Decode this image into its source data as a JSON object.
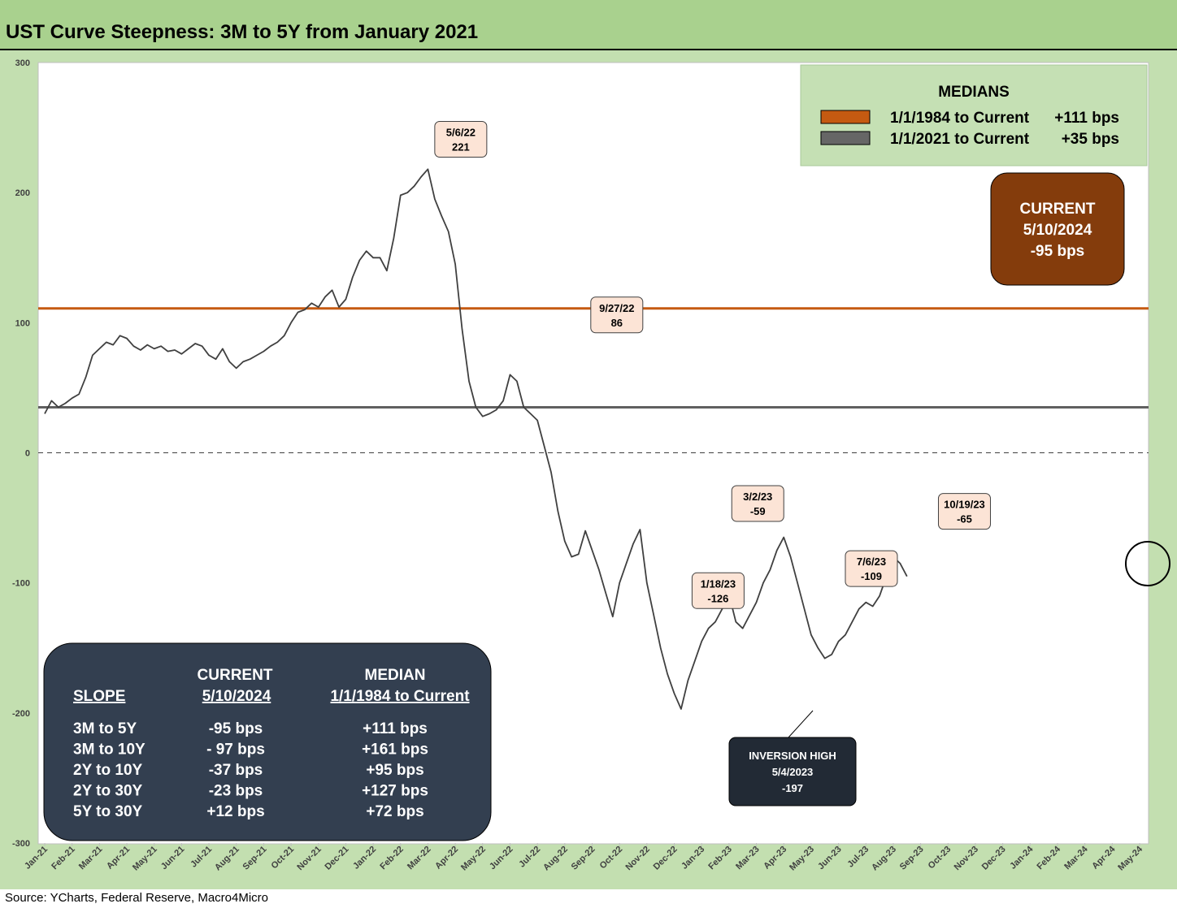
{
  "title": "UST Curve Steepness: 3M to 5Y from January 2021",
  "source": "Source: YCharts, Federal Reserve, Macro4Micro",
  "chart_data": {
    "type": "line",
    "ylim": [
      -300,
      300
    ],
    "yticks": [
      "300",
      "200",
      "100",
      "0",
      "-100",
      "-200",
      "-300"
    ],
    "ytick_values": [
      300,
      200,
      100,
      0,
      -100,
      -200,
      -300
    ],
    "x_categories": [
      "Jan-21",
      "Feb-21",
      "Mar-21",
      "Apr-21",
      "May-21",
      "Jun-21",
      "Jul-21",
      "Aug-21",
      "Sep-21",
      "Oct-21",
      "Nov-21",
      "Dec-21",
      "Jan-22",
      "Feb-22",
      "Mar-22",
      "Apr-22",
      "May-22",
      "Jun-22",
      "Jul-22",
      "Aug-22",
      "Sep-22",
      "Oct-22",
      "Nov-22",
      "Dec-22",
      "Jan-23",
      "Feb-23",
      "Mar-23",
      "Apr-23",
      "May-23",
      "Jun-23",
      "Jul-23",
      "Aug-23",
      "Sep-23",
      "Oct-23",
      "Nov-23",
      "Dec-23",
      "Jan-24",
      "Feb-24",
      "Mar-24",
      "Apr-24",
      "May-24"
    ],
    "series": [
      {
        "color": "#404040",
        "x_start": 0,
        "x_step": 0.25,
        "values": [
          30,
          40,
          35,
          38,
          42,
          45,
          58,
          75,
          80,
          85,
          83,
          90,
          88,
          82,
          79,
          83,
          80,
          82,
          78,
          79,
          76,
          80,
          84,
          82,
          75,
          72,
          80,
          70,
          65,
          70,
          72,
          75,
          78,
          82,
          85,
          90,
          100,
          108,
          110,
          115,
          112,
          120,
          125,
          112,
          118,
          135,
          148,
          155,
          150,
          150,
          140,
          165,
          198,
          200,
          205,
          212,
          218,
          195,
          182,
          170,
          145,
          95,
          55,
          35,
          28,
          30,
          33,
          40,
          60,
          55,
          35,
          30,
          25,
          5,
          -15,
          -45,
          -68,
          -80,
          -78,
          -60,
          -75,
          -90,
          -108,
          -126,
          -100,
          -85,
          -70,
          -59,
          -100,
          -125,
          -150,
          -170,
          -185,
          -197,
          -175,
          -160,
          -145,
          -135,
          -130,
          -120,
          -109,
          -130,
          -135,
          -125,
          -115,
          -100,
          -90,
          -75,
          -65,
          -80,
          -100,
          -120,
          -140,
          -150,
          -158,
          -155,
          -145,
          -140,
          -130,
          -120,
          -115,
          -118,
          -110,
          -95,
          -80,
          -85,
          -95
        ]
      }
    ],
    "reference_lines": [
      {
        "value": 111,
        "color": "#c55a11",
        "label": "1/1/1984 to Current +111 bps"
      },
      {
        "value": 35,
        "color": "#606060",
        "label": "1/1/2021 to Current +35 bps"
      }
    ],
    "zero_line": "dashed",
    "annotations": [
      {
        "x": 15.2,
        "y": 221,
        "lines": [
          "5/6/22",
          "221"
        ]
      },
      {
        "x": 20.9,
        "y": 86,
        "lines": [
          "9/27/22",
          "86"
        ]
      },
      {
        "x": 26.05,
        "y": -59,
        "lines": [
          "3/2/23",
          "-59"
        ]
      },
      {
        "x": 24.6,
        "y": -126,
        "lines": [
          "1/18/23",
          "-126"
        ]
      },
      {
        "x": 30.2,
        "y": -109,
        "lines": [
          "7/6/23",
          "-109"
        ]
      },
      {
        "x": 33.6,
        "y": -65,
        "lines": [
          "10/19/23",
          "-65"
        ]
      }
    ]
  },
  "legend": {
    "title": "MEDIANS",
    "items": [
      {
        "label": "1/1/1984 to Current",
        "value": "+111 bps",
        "color": "#c55a11"
      },
      {
        "label": "1/1/2021 to Current",
        "value": "+35 bps",
        "color": "#666666"
      }
    ]
  },
  "current_box": {
    "line1": "CURRENT",
    "line2": "5/10/2024",
    "line3": "-95 bps",
    "color": "#843c0c"
  },
  "inversion_box": {
    "line1": "INVERSION HIGH",
    "line2": "5/4/2023",
    "line3": "-197"
  },
  "slope_table": {
    "header_current": "CURRENT",
    "header_median": "MEDIAN",
    "col_slope": "SLOPE",
    "col_current_date": "5/10/2024",
    "col_median_range": "1/1/1984 to Current",
    "rows": [
      {
        "slope": "3M to 5Y",
        "current": "-95 bps",
        "median": "+111 bps"
      },
      {
        "slope": "3M to 10Y",
        "current": "- 97 bps",
        "median": "+161 bps"
      },
      {
        "slope": "2Y to 10Y",
        "current": "-37 bps",
        "median": "+95 bps"
      },
      {
        "slope": "2Y to 30Y",
        "current": "-23 bps",
        "median": "+127 bps"
      },
      {
        "slope": "5Y to 30Y",
        "current": "+12 bps",
        "median": "+72 bps"
      }
    ]
  }
}
